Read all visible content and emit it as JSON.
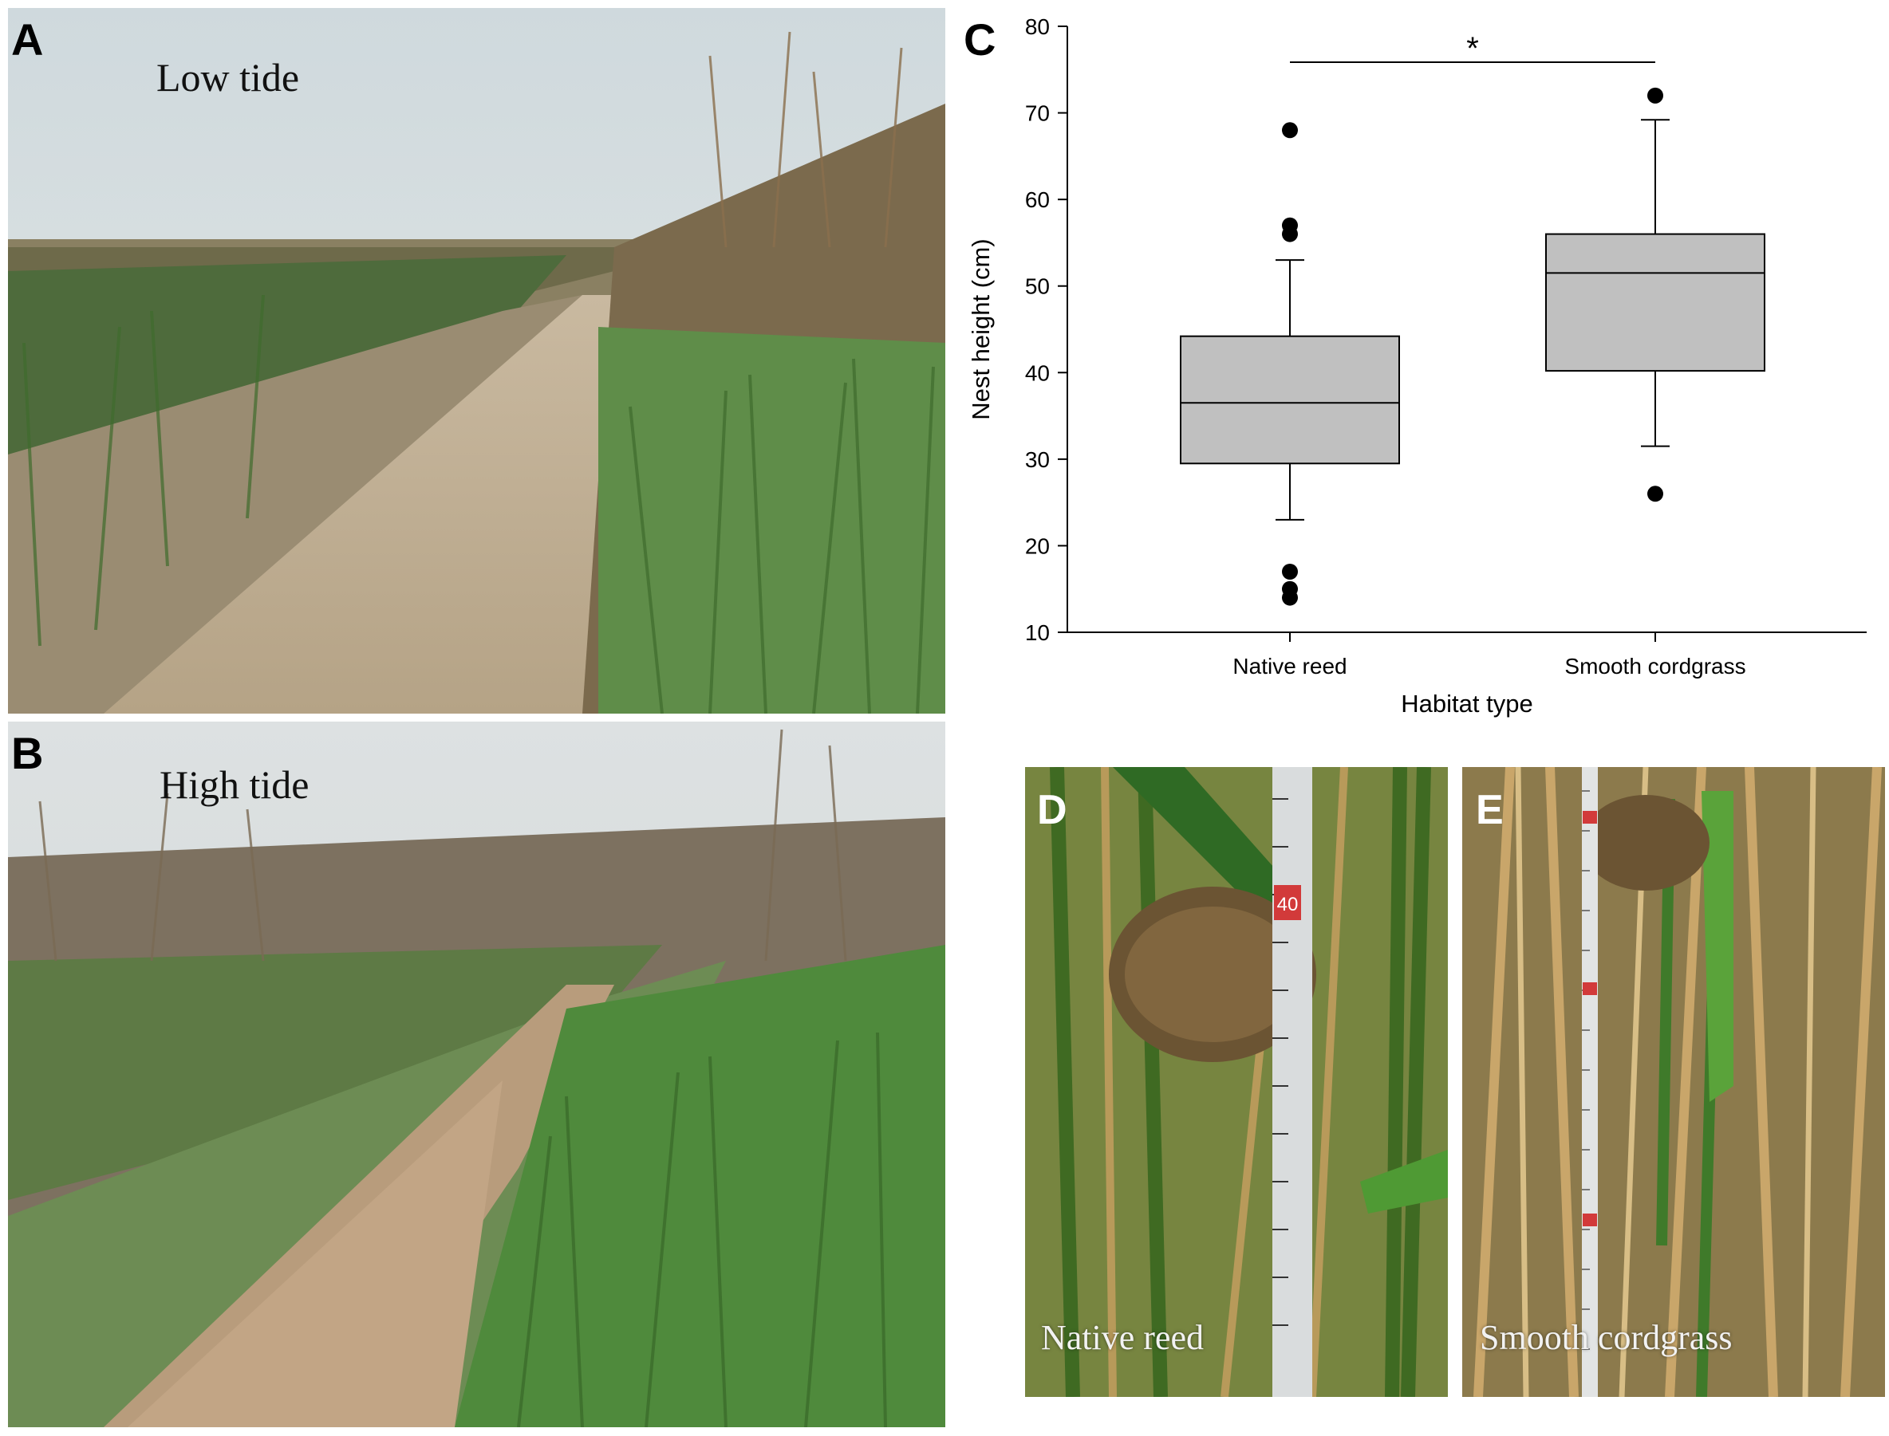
{
  "panels": {
    "a": {
      "letter": "A",
      "caption": "Low tide"
    },
    "b": {
      "letter": "B",
      "caption": "High tide"
    },
    "c": {
      "letter": "C"
    },
    "d": {
      "letter": "D",
      "caption": "Native reed",
      "tape_mark": "40"
    },
    "e": {
      "letter": "E",
      "caption": "Smooth cordgrass"
    }
  },
  "chart_data": {
    "type": "box",
    "xlabel": "Habitat type",
    "ylabel": "Nest height (cm)",
    "ylim": [
      10,
      80
    ],
    "yticks": [
      10,
      20,
      30,
      40,
      50,
      60,
      70,
      80
    ],
    "categories": [
      "Native reed",
      "Smooth cordgrass"
    ],
    "boxes": [
      {
        "category": "Native reed",
        "whisker_low": 23,
        "q1": 29.5,
        "median": 36.5,
        "q3": 44.2,
        "whisker_high": 53,
        "outliers": [
          14,
          15,
          17,
          56,
          57,
          68
        ]
      },
      {
        "category": "Smooth cordgrass",
        "whisker_low": 31.5,
        "q1": 40.2,
        "median": 51.5,
        "q3": 56,
        "whisker_high": 69.2,
        "outliers": [
          26,
          72
        ]
      }
    ],
    "significance": {
      "label": "*",
      "between": [
        "Native reed",
        "Smooth cordgrass"
      ]
    },
    "colors": {
      "box_fill": "#c0c0c0",
      "stroke": "#000000"
    }
  }
}
